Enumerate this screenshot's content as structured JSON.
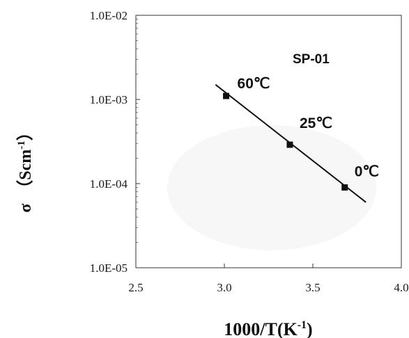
{
  "chart_data": {
    "type": "scatter",
    "title": "",
    "xlabel": "1000/T(K",
    "xlabel_sup": "-1",
    "xlabel_tail": ")",
    "ylabel_sigma": "σ",
    "ylabel_unit": "（Scm",
    "ylabel_sup": "-1",
    "ylabel_tail": "）",
    "xlim": [
      2.5,
      4.0
    ],
    "ylim": [
      1e-05,
      0.01
    ],
    "yscale": "log",
    "grid": false,
    "xticks": [
      "2.5",
      "3.0",
      "3.5",
      "4.0"
    ],
    "yticks": [
      "1.0E-05",
      "1.0E-04",
      "1.0E-03",
      "1.0E-02"
    ],
    "series": [
      {
        "points": [
          {
            "x": 3.01,
            "y": 0.0011,
            "label": "60℃"
          },
          {
            "x": 3.37,
            "y": 0.00029,
            "label": "25℃"
          },
          {
            "x": 3.68,
            "y": 9e-05,
            "label": "0℃"
          }
        ]
      }
    ],
    "fit_line": {
      "x": [
        2.95,
        3.8
      ],
      "y": [
        0.0015,
        6e-05
      ]
    },
    "annotations": [
      {
        "text": "SP-01"
      }
    ]
  }
}
